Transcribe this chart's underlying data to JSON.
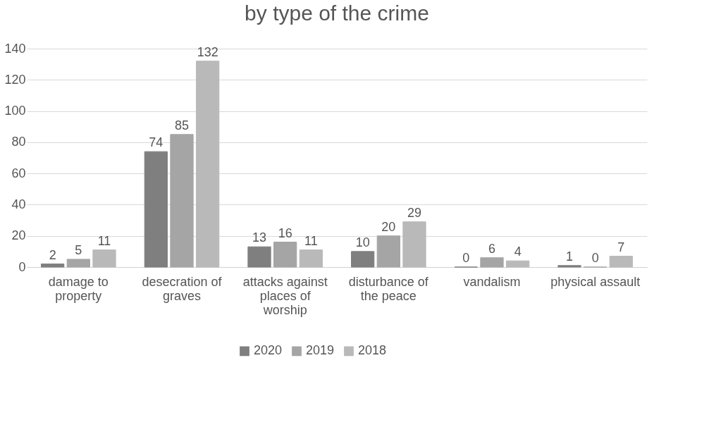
{
  "chart_data": {
    "type": "bar",
    "title": "by type of the crime",
    "categories": [
      "damage to property",
      "desecration of graves",
      "attacks against places of worship",
      "disturbance of the peace",
      "vandalism",
      "physical assault"
    ],
    "series": [
      {
        "name": "2020",
        "color": "#7f7f7f",
        "values": [
          2,
          74,
          13,
          10,
          0,
          1
        ]
      },
      {
        "name": "2019",
        "color": "#a5a5a5",
        "values": [
          5,
          85,
          16,
          20,
          6,
          0
        ]
      },
      {
        "name": "2018",
        "color": "#b9b9b9",
        "values": [
          11,
          132,
          11,
          29,
          4,
          7
        ]
      }
    ],
    "ylim": [
      0,
      140
    ],
    "yticks": [
      0,
      20,
      40,
      60,
      80,
      100,
      120,
      140
    ],
    "grid": "y",
    "legend": "bottom",
    "data_labels": true
  }
}
